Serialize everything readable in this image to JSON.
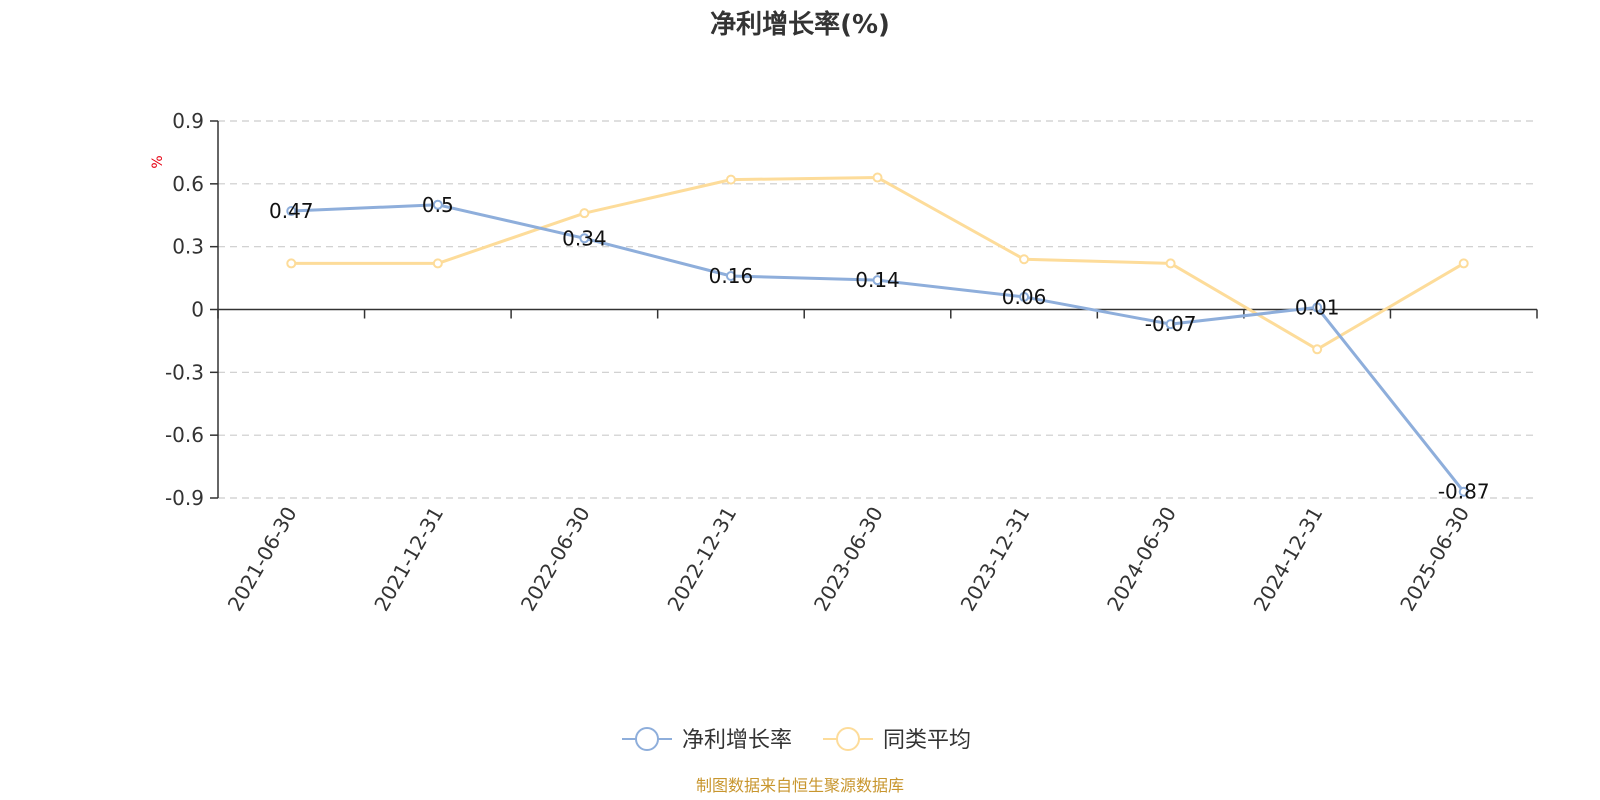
{
  "chart_data": {
    "type": "line",
    "title": "净利增长率(%)",
    "ylabel": "%",
    "xlabel": "",
    "ylim": [
      -0.9,
      0.9
    ],
    "yticks": [
      "0.9",
      "0.6",
      "0.3",
      "0",
      "-0.3",
      "-0.6",
      "-0.9"
    ],
    "categories": [
      "2021-06-30",
      "2021-12-31",
      "2022-06-30",
      "2022-12-31",
      "2023-06-30",
      "2023-12-31",
      "2024-06-30",
      "2024-12-31",
      "2025-06-30"
    ],
    "series": [
      {
        "name": "净利增长率",
        "color": "#8eaedb",
        "values": [
          0.47,
          0.5,
          0.34,
          0.16,
          0.14,
          0.06,
          -0.07,
          0.01,
          -0.87
        ],
        "labels": [
          "0.47",
          "0.5",
          "0.34",
          "0.16",
          "0.14",
          "0.06",
          "-0.07",
          "0.01",
          "-0.87"
        ]
      },
      {
        "name": "同类平均",
        "color": "#fddc9a",
        "values": [
          0.22,
          0.22,
          0.46,
          0.62,
          0.63,
          0.24,
          0.22,
          -0.19,
          0.22
        ]
      }
    ],
    "grid": true,
    "legend": "bottom-center",
    "source": "制图数据来自恒生聚源数据库",
    "source_color": "#c8962e"
  }
}
